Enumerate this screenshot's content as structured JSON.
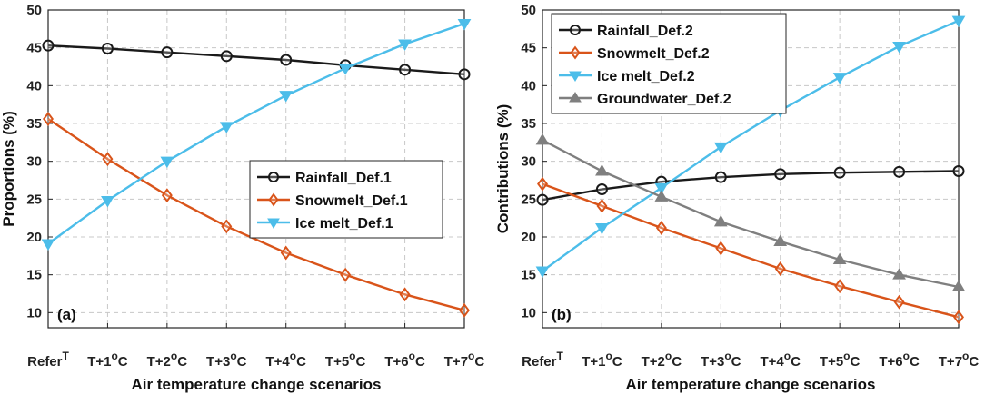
{
  "chart_data": [
    {
      "type": "line",
      "panel_label": "(a)",
      "categories": [
        "Refer",
        "T+1",
        "T+2",
        "T+3",
        "T+4",
        "T+5",
        "T+6",
        "T+7"
      ],
      "category_sup": [
        "T",
        "o",
        "o",
        "o",
        "o",
        "o",
        "o",
        "o"
      ],
      "category_suffix": [
        "",
        "C",
        "C",
        "C",
        "C",
        "C",
        "C",
        "C"
      ],
      "xlabel": "Air temperature change scenarios",
      "ylabel": "Proportions (%)",
      "ylim": [
        8,
        50
      ],
      "yticks": [
        10,
        15,
        20,
        25,
        30,
        35,
        40,
        45,
        50
      ],
      "grid": true,
      "legend_position": "center-right",
      "series": [
        {
          "name": "Rainfall_Def.1",
          "color": "#1a1a1a",
          "marker": "circle",
          "values": [
            45.3,
            44.9,
            44.4,
            43.9,
            43.4,
            42.7,
            42.1,
            41.5
          ]
        },
        {
          "name": "Snowmelt_Def.1",
          "color": "#d9541a",
          "marker": "diamond",
          "values": [
            35.6,
            30.3,
            25.5,
            21.4,
            17.9,
            15.0,
            12.4,
            10.3
          ]
        },
        {
          "name": "Ice melt_Def.1",
          "color": "#4cbde9",
          "marker": "triangle-down",
          "values": [
            19.1,
            24.8,
            30.0,
            34.6,
            38.7,
            42.3,
            45.5,
            48.2
          ]
        }
      ]
    },
    {
      "type": "line",
      "panel_label": "(b)",
      "categories": [
        "Refer",
        "T+1",
        "T+2",
        "T+3",
        "T+4",
        "T+5",
        "T+6",
        "T+7"
      ],
      "category_sup": [
        "T",
        "o",
        "o",
        "o",
        "o",
        "o",
        "o",
        "o"
      ],
      "category_suffix": [
        "",
        "C",
        "C",
        "C",
        "C",
        "C",
        "C",
        "C"
      ],
      "xlabel": "Air temperature change scenarios",
      "ylabel": "Contributions (%)",
      "ylim": [
        8,
        50
      ],
      "yticks": [
        10,
        15,
        20,
        25,
        30,
        35,
        40,
        45,
        50
      ],
      "grid": true,
      "legend_position": "top-left",
      "series": [
        {
          "name": "Rainfall_Def.2",
          "color": "#1a1a1a",
          "marker": "circle",
          "values": [
            24.9,
            26.3,
            27.3,
            27.9,
            28.3,
            28.5,
            28.6,
            28.7
          ]
        },
        {
          "name": "Snowmelt_Def.2",
          "color": "#d9541a",
          "marker": "diamond",
          "values": [
            27.0,
            24.1,
            21.2,
            18.5,
            15.8,
            13.5,
            11.4,
            9.4
          ]
        },
        {
          "name": "Ice melt_Def.2",
          "color": "#4cbde9",
          "marker": "triangle-down",
          "values": [
            15.5,
            21.2,
            26.5,
            31.9,
            36.7,
            41.1,
            45.2,
            48.6
          ]
        },
        {
          "name": "Groundwater_Def.2",
          "color": "#7f7f7f",
          "marker": "triangle-up",
          "values": [
            32.8,
            28.7,
            25.3,
            22.0,
            19.4,
            17.0,
            15.0,
            13.4
          ]
        }
      ]
    }
  ]
}
